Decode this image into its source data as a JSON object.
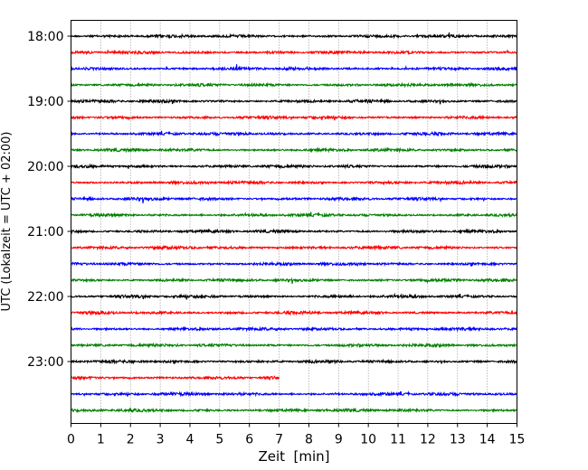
{
  "chart_data": {
    "type": "line",
    "title": "",
    "xlabel": "Zeit  [min]",
    "ylabel": "UTC (Lokalzeit = UTC + 02:00)",
    "xlim": [
      0,
      15
    ],
    "x_ticks": [
      "0",
      "1",
      "2",
      "3",
      "4",
      "5",
      "6",
      "7",
      "8",
      "9",
      "10",
      "11",
      "12",
      "13",
      "14",
      "15"
    ],
    "y_ticks": [
      "18:00",
      "19:00",
      "20:00",
      "21:00",
      "22:00",
      "23:00"
    ],
    "grid": "vertical dotted lines at each minute",
    "trace_colors": [
      "#000000",
      "#ff0000",
      "#0000ff",
      "#008000"
    ],
    "series": [
      {
        "start": "18:00",
        "color": "#000000"
      },
      {
        "start": "18:15",
        "color": "#ff0000"
      },
      {
        "start": "18:30",
        "color": "#0000ff"
      },
      {
        "start": "18:45",
        "color": "#008000"
      },
      {
        "start": "19:00",
        "color": "#000000"
      },
      {
        "start": "19:15",
        "color": "#ff0000"
      },
      {
        "start": "19:30",
        "color": "#0000ff"
      },
      {
        "start": "19:45",
        "color": "#008000"
      },
      {
        "start": "20:00",
        "color": "#000000"
      },
      {
        "start": "20:15",
        "color": "#ff0000"
      },
      {
        "start": "20:30",
        "color": "#0000ff"
      },
      {
        "start": "20:45",
        "color": "#008000"
      },
      {
        "start": "21:00",
        "color": "#000000"
      },
      {
        "start": "21:15",
        "color": "#ff0000"
      },
      {
        "start": "21:30",
        "color": "#0000ff"
      },
      {
        "start": "21:45",
        "color": "#008000"
      },
      {
        "start": "22:00",
        "color": "#000000"
      },
      {
        "start": "22:15",
        "color": "#ff0000"
      },
      {
        "start": "22:30",
        "color": "#0000ff"
      },
      {
        "start": "22:45",
        "color": "#008000"
      },
      {
        "start": "23:00",
        "color": "#000000"
      },
      {
        "start": "23:15",
        "color": "#ff0000",
        "end_min": 7
      },
      {
        "start": "23:30",
        "color": "#0000ff"
      },
      {
        "start": "23:45",
        "color": "#008000"
      }
    ]
  }
}
